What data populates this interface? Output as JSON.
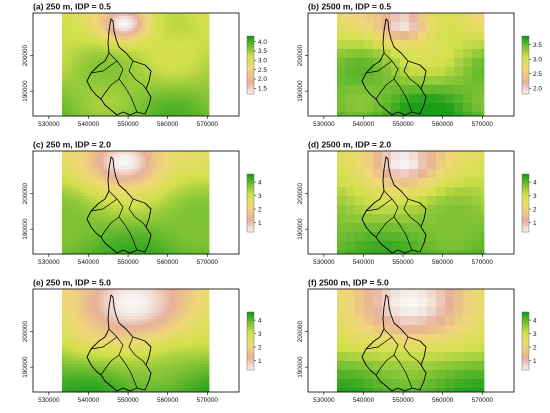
{
  "chart_data": [
    {
      "type": "heatmap",
      "title": "(a) 250 m, IDP = 0.5",
      "resolution": "fine",
      "xticks": [
        "530000",
        "540000",
        "550000",
        "560000",
        "570000"
      ],
      "yticks": [
        "190000",
        "200000"
      ],
      "legend_ticks": [
        "4.0",
        "3.5",
        "3.0",
        "2.5",
        "2.0",
        "1.5"
      ],
      "legend_range": [
        1.2,
        4.3
      ],
      "hotspots": [
        {
          "x": 549000,
          "y": 209000,
          "value": 1.2,
          "spread": 4000
        }
      ],
      "south_value": 3.8,
      "north_value": 3.1,
      "colors": {
        "low": "#f7f7f7",
        "mid_low": "#e7b09a",
        "mid": "#f0d878",
        "mid_high": "#d2e04a",
        "high": "#1a9e1a"
      }
    },
    {
      "type": "heatmap",
      "title": "(b) 2500 m, IDP = 0.5",
      "resolution": "coarse",
      "xticks": [
        "530000",
        "540000",
        "550000",
        "560000",
        "570000"
      ],
      "yticks": [
        "190000",
        "200000"
      ],
      "legend_ticks": [
        "3.5",
        "3.0",
        "2.5",
        "2.0"
      ],
      "legend_range": [
        1.8,
        3.8
      ],
      "hotspots": [
        {
          "x": 550000,
          "y": 209000,
          "value": 1.9,
          "spread": 4500
        }
      ],
      "south_value": 3.7,
      "north_value": 2.9,
      "colors": {
        "low": "#f7f7f7",
        "mid_low": "#e7b09a",
        "mid": "#f0d878",
        "mid_high": "#d2e04a",
        "high": "#1a9e1a"
      }
    },
    {
      "type": "heatmap",
      "title": "(c) 250 m, IDP = 2.0",
      "resolution": "fine",
      "xticks": [
        "530000",
        "540000",
        "550000",
        "560000",
        "570000"
      ],
      "yticks": [
        "190000",
        "200000"
      ],
      "legend_ticks": [
        "4",
        "3",
        "2",
        "1"
      ],
      "legend_range": [
        0.3,
        4.6
      ],
      "hotspots": [
        {
          "x": 549000,
          "y": 209000,
          "value": 0.3,
          "spread": 6500
        }
      ],
      "south_value": 4.2,
      "north_value": 2.8,
      "colors": {
        "low": "#f7f7f7",
        "mid_low": "#e7b09a",
        "mid": "#f0d878",
        "mid_high": "#d2e04a",
        "high": "#1a9e1a"
      }
    },
    {
      "type": "heatmap",
      "title": "(d) 2500 m, IDP = 2.0",
      "resolution": "coarse",
      "xticks": [
        "530000",
        "540000",
        "550000",
        "560000",
        "570000"
      ],
      "yticks": [
        "190000",
        "200000"
      ],
      "legend_ticks": [
        "4",
        "3",
        "2",
        "1"
      ],
      "legend_range": [
        0.3,
        4.6
      ],
      "hotspots": [
        {
          "x": 550000,
          "y": 209000,
          "value": 0.3,
          "spread": 6500
        }
      ],
      "south_value": 4.2,
      "north_value": 2.8,
      "colors": {
        "low": "#f7f7f7",
        "mid_low": "#e7b09a",
        "mid": "#f0d878",
        "mid_high": "#d2e04a",
        "high": "#1a9e1a"
      }
    },
    {
      "type": "heatmap",
      "title": "(e) 250 m, IDP = 5.0",
      "resolution": "fine",
      "xticks": [
        "530000",
        "540000",
        "550000",
        "560000",
        "570000"
      ],
      "yticks": [
        "190000",
        "200000"
      ],
      "legend_ticks": [
        "4",
        "3",
        "2",
        "1"
      ],
      "legend_range": [
        0.3,
        4.6
      ],
      "hotspots": [
        {
          "x": 551000,
          "y": 208000,
          "value": 0.3,
          "spread": 10000
        }
      ],
      "south_value": 4.3,
      "north_value": 2.6,
      "colors": {
        "low": "#f7f7f7",
        "mid_low": "#e7b09a",
        "mid": "#f0d878",
        "mid_high": "#d2e04a",
        "high": "#1a9e1a"
      }
    },
    {
      "type": "heatmap",
      "title": "(f) 2500 m, IDP = 5.0",
      "resolution": "coarse",
      "xticks": [
        "530000",
        "540000",
        "550000",
        "560000",
        "570000"
      ],
      "yticks": [
        "190000",
        "200000"
      ],
      "legend_ticks": [
        "4",
        "3",
        "2",
        "1"
      ],
      "legend_range": [
        0.3,
        4.6
      ],
      "hotspots": [
        {
          "x": 552000,
          "y": 208000,
          "value": 0.3,
          "spread": 10000
        }
      ],
      "south_value": 4.3,
      "north_value": 2.6,
      "colors": {
        "low": "#f7f7f7",
        "mid_low": "#e7b09a",
        "mid": "#f0d878",
        "mid_high": "#d2e04a",
        "high": "#1a9e1a"
      }
    }
  ]
}
